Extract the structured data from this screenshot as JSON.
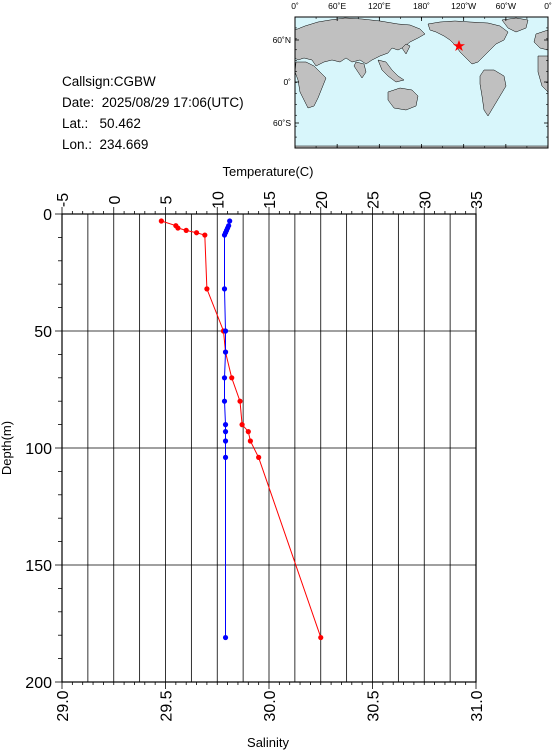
{
  "info": {
    "callsign_label": "Callsign:",
    "callsign": "CGBW",
    "date_label": "Date:",
    "date": "2025/08/29 17:06(UTC)",
    "lat_label": "Lat.:",
    "lat": "50.462",
    "lon_label": "Lon.:",
    "lon": "234.669"
  },
  "map": {
    "lon_labels": [
      "0˚",
      "60˚E",
      "120˚E",
      "180˚",
      "120˚W",
      "60˚W",
      "0˚"
    ],
    "lat_labels": [
      "60˚N",
      "0˚",
      "60˚S"
    ],
    "ocean_color": "#d8f6fb",
    "land_color": "#c0c0c0",
    "marker_icon": "red-star-icon",
    "marker_color": "#ff0000"
  },
  "chart_data": {
    "type": "scatter",
    "ylabel": "Depth(m)",
    "y_ticks": [
      "0",
      "50",
      "100",
      "150",
      "200"
    ],
    "ylim": [
      0,
      200
    ],
    "y_inverted": true,
    "top_axis": {
      "label": "Temperature(C)",
      "ticks": [
        "-5",
        "0",
        "5",
        "10",
        "15",
        "20",
        "25",
        "30",
        "35"
      ],
      "range": [
        -5,
        35
      ]
    },
    "bottom_axis": {
      "label": "Salinity",
      "ticks": [
        "29.0",
        "29.5",
        "30.0",
        "30.5",
        "31.0"
      ],
      "range": [
        29.0,
        31.0
      ]
    },
    "grid": true,
    "series": [
      {
        "axis": "bottom",
        "color": "#ff0000",
        "points": [
          {
            "x": 29.48,
            "y": 3
          },
          {
            "x": 29.55,
            "y": 5
          },
          {
            "x": 29.56,
            "y": 6
          },
          {
            "x": 29.6,
            "y": 7
          },
          {
            "x": 29.65,
            "y": 8
          },
          {
            "x": 29.69,
            "y": 9
          },
          {
            "x": 29.7,
            "y": 32
          },
          {
            "x": 29.78,
            "y": 50
          },
          {
            "x": 29.79,
            "y": 59
          },
          {
            "x": 29.82,
            "y": 70
          },
          {
            "x": 29.86,
            "y": 80
          },
          {
            "x": 29.87,
            "y": 90
          },
          {
            "x": 29.9,
            "y": 93
          },
          {
            "x": 29.91,
            "y": 97
          },
          {
            "x": 29.95,
            "y": 104
          },
          {
            "x": 30.25,
            "y": 181
          }
        ]
      },
      {
        "axis": "top",
        "color": "#0000ff",
        "points": [
          {
            "x": 11.2,
            "y": 3
          },
          {
            "x": 11.1,
            "y": 5
          },
          {
            "x": 11.0,
            "y": 6
          },
          {
            "x": 10.9,
            "y": 7
          },
          {
            "x": 10.8,
            "y": 8
          },
          {
            "x": 10.7,
            "y": 9
          },
          {
            "x": 10.7,
            "y": 32
          },
          {
            "x": 10.8,
            "y": 50
          },
          {
            "x": 10.8,
            "y": 59
          },
          {
            "x": 10.7,
            "y": 70
          },
          {
            "x": 10.7,
            "y": 80
          },
          {
            "x": 10.8,
            "y": 90
          },
          {
            "x": 10.8,
            "y": 93
          },
          {
            "x": 10.8,
            "y": 97
          },
          {
            "x": 10.8,
            "y": 104
          },
          {
            "x": 10.8,
            "y": 181
          }
        ]
      }
    ]
  }
}
